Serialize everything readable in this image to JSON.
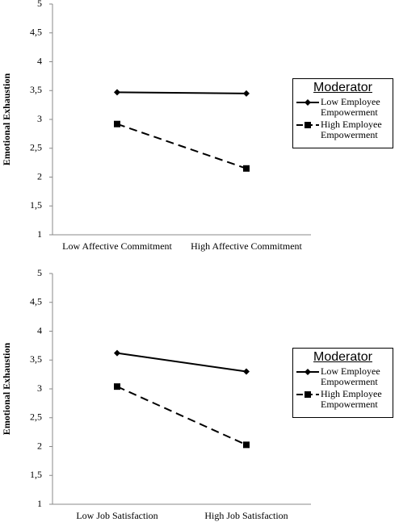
{
  "chart_data": [
    {
      "type": "line",
      "y_label": "Emotional Exhaustion",
      "categories": [
        "Low Affective Commitment",
        "High Affective Commitment"
      ],
      "series": [
        {
          "name": "Low Employee Empowerment",
          "color": "#000000",
          "marker": "diamond",
          "dashed": false,
          "values": [
            3.47,
            3.45
          ]
        },
        {
          "name": "High Employee Empowerment",
          "color": "#000000",
          "marker": "square",
          "dashed": true,
          "values": [
            2.92,
            2.15
          ]
        }
      ],
      "legend_title": "Moderator",
      "legend": "right",
      "ylim": [
        1,
        5
      ],
      "yticks": [
        1,
        {
          "value": 1.5,
          "label": "1,5"
        },
        2,
        {
          "value": 2.5,
          "label": "2,5"
        },
        3,
        {
          "value": 3.5,
          "label": "3,5"
        },
        4,
        {
          "value": 4.5,
          "label": "4,5"
        },
        5
      ]
    },
    {
      "type": "line",
      "y_label": "Emotional Exhaustion",
      "categories": [
        "Low Job Satisfaction",
        "High Job Satisfaction"
      ],
      "series": [
        {
          "name": "Low Employee Empowerment",
          "color": "#000000",
          "marker": "diamond",
          "dashed": false,
          "values": [
            3.62,
            3.3
          ]
        },
        {
          "name": "High Employee Empowerment",
          "color": "#000000",
          "marker": "square",
          "dashed": true,
          "values": [
            3.04,
            2.03
          ]
        }
      ],
      "legend_title": "Moderator",
      "legend": "right",
      "ylim": [
        1,
        5
      ],
      "yticks": [
        1,
        {
          "value": 1.5,
          "label": "1,5"
        },
        2,
        {
          "value": 2.5,
          "label": "2,5"
        },
        3,
        {
          "value": 3.5,
          "label": "3,5"
        },
        4,
        {
          "value": 4.5,
          "label": "4,5"
        },
        5
      ]
    }
  ]
}
